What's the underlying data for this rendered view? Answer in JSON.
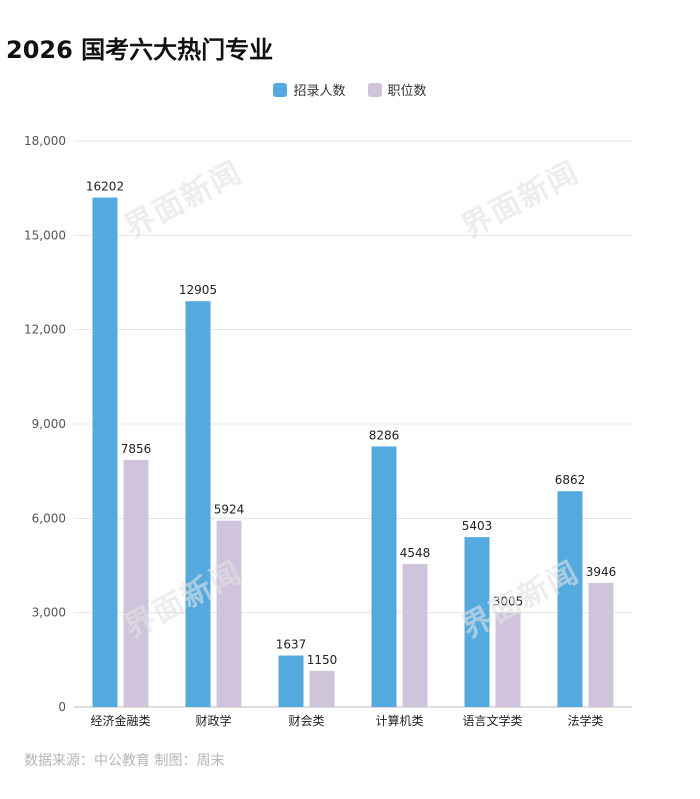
{
  "header": {
    "title": "2026 国考六大热门专业"
  },
  "source": "数据来源：中公教育 制图：周末",
  "watermark": "界面新闻",
  "colors": {
    "series1": "#54a9de",
    "series2": "#cfc4dc",
    "grid": "#e6e6e6",
    "axis_text": "#555555"
  },
  "chart_data": {
    "type": "bar",
    "categories": [
      "经济金融类",
      "财政学",
      "财会类",
      "计算机类",
      "语言文学类",
      "法学类"
    ],
    "series": [
      {
        "name": "招录人数",
        "values": [
          16202,
          12905,
          1637,
          8286,
          5403,
          6862
        ]
      },
      {
        "name": "职位数",
        "values": [
          7856,
          5924,
          1150,
          4548,
          3005,
          3946
        ]
      }
    ],
    "yticks": [
      "0",
      "3,000",
      "6,000",
      "9,000",
      "12,000",
      "15,000",
      "18,000"
    ],
    "ylim": [
      0,
      18000
    ],
    "legend": "top-center",
    "grid": true
  }
}
